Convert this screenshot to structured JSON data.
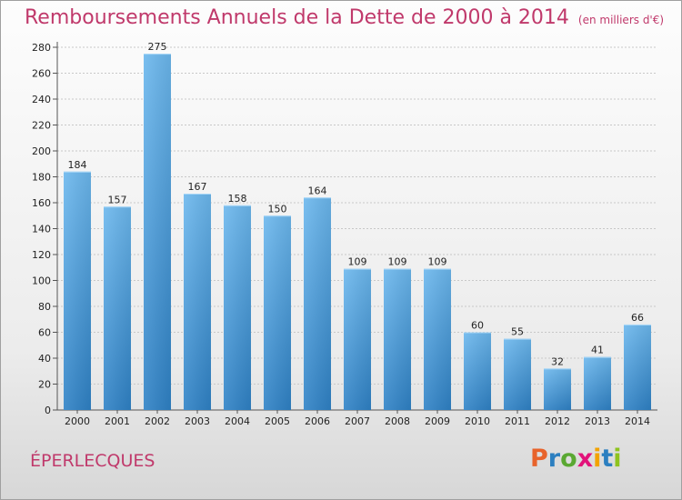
{
  "title": "Remboursements Annuels de la Dette de 2000 à 2014",
  "unit": "(en milliers d'€)",
  "commune": "ÉPERLECQUES",
  "logo": {
    "letters": [
      "P",
      "r",
      "o",
      "x",
      "i",
      "t",
      "i"
    ],
    "colors": [
      "#e8632b",
      "#2c7fc0",
      "#5aa832",
      "#e2127a",
      "#f2a300",
      "#2c7fc0",
      "#8fc31f"
    ]
  },
  "chart_data": {
    "type": "bar",
    "title": "Remboursements Annuels de la Dette de 2000 à 2014",
    "xlabel": "",
    "ylabel": "",
    "categories": [
      "2000",
      "2001",
      "2002",
      "2003",
      "2004",
      "2005",
      "2006",
      "2007",
      "2008",
      "2009",
      "2010",
      "2011",
      "2012",
      "2013",
      "2014"
    ],
    "values": [
      184,
      157,
      275,
      167,
      158,
      150,
      164,
      109,
      109,
      109,
      60,
      55,
      32,
      41,
      66
    ],
    "ylim": [
      0,
      280
    ],
    "yticks": [
      0,
      20,
      40,
      60,
      80,
      100,
      120,
      140,
      160,
      180,
      200,
      220,
      240,
      260,
      280
    ],
    "grid": true,
    "bar_color_top": "#6cb8ee",
    "bar_color_bottom": "#2f82c6"
  }
}
